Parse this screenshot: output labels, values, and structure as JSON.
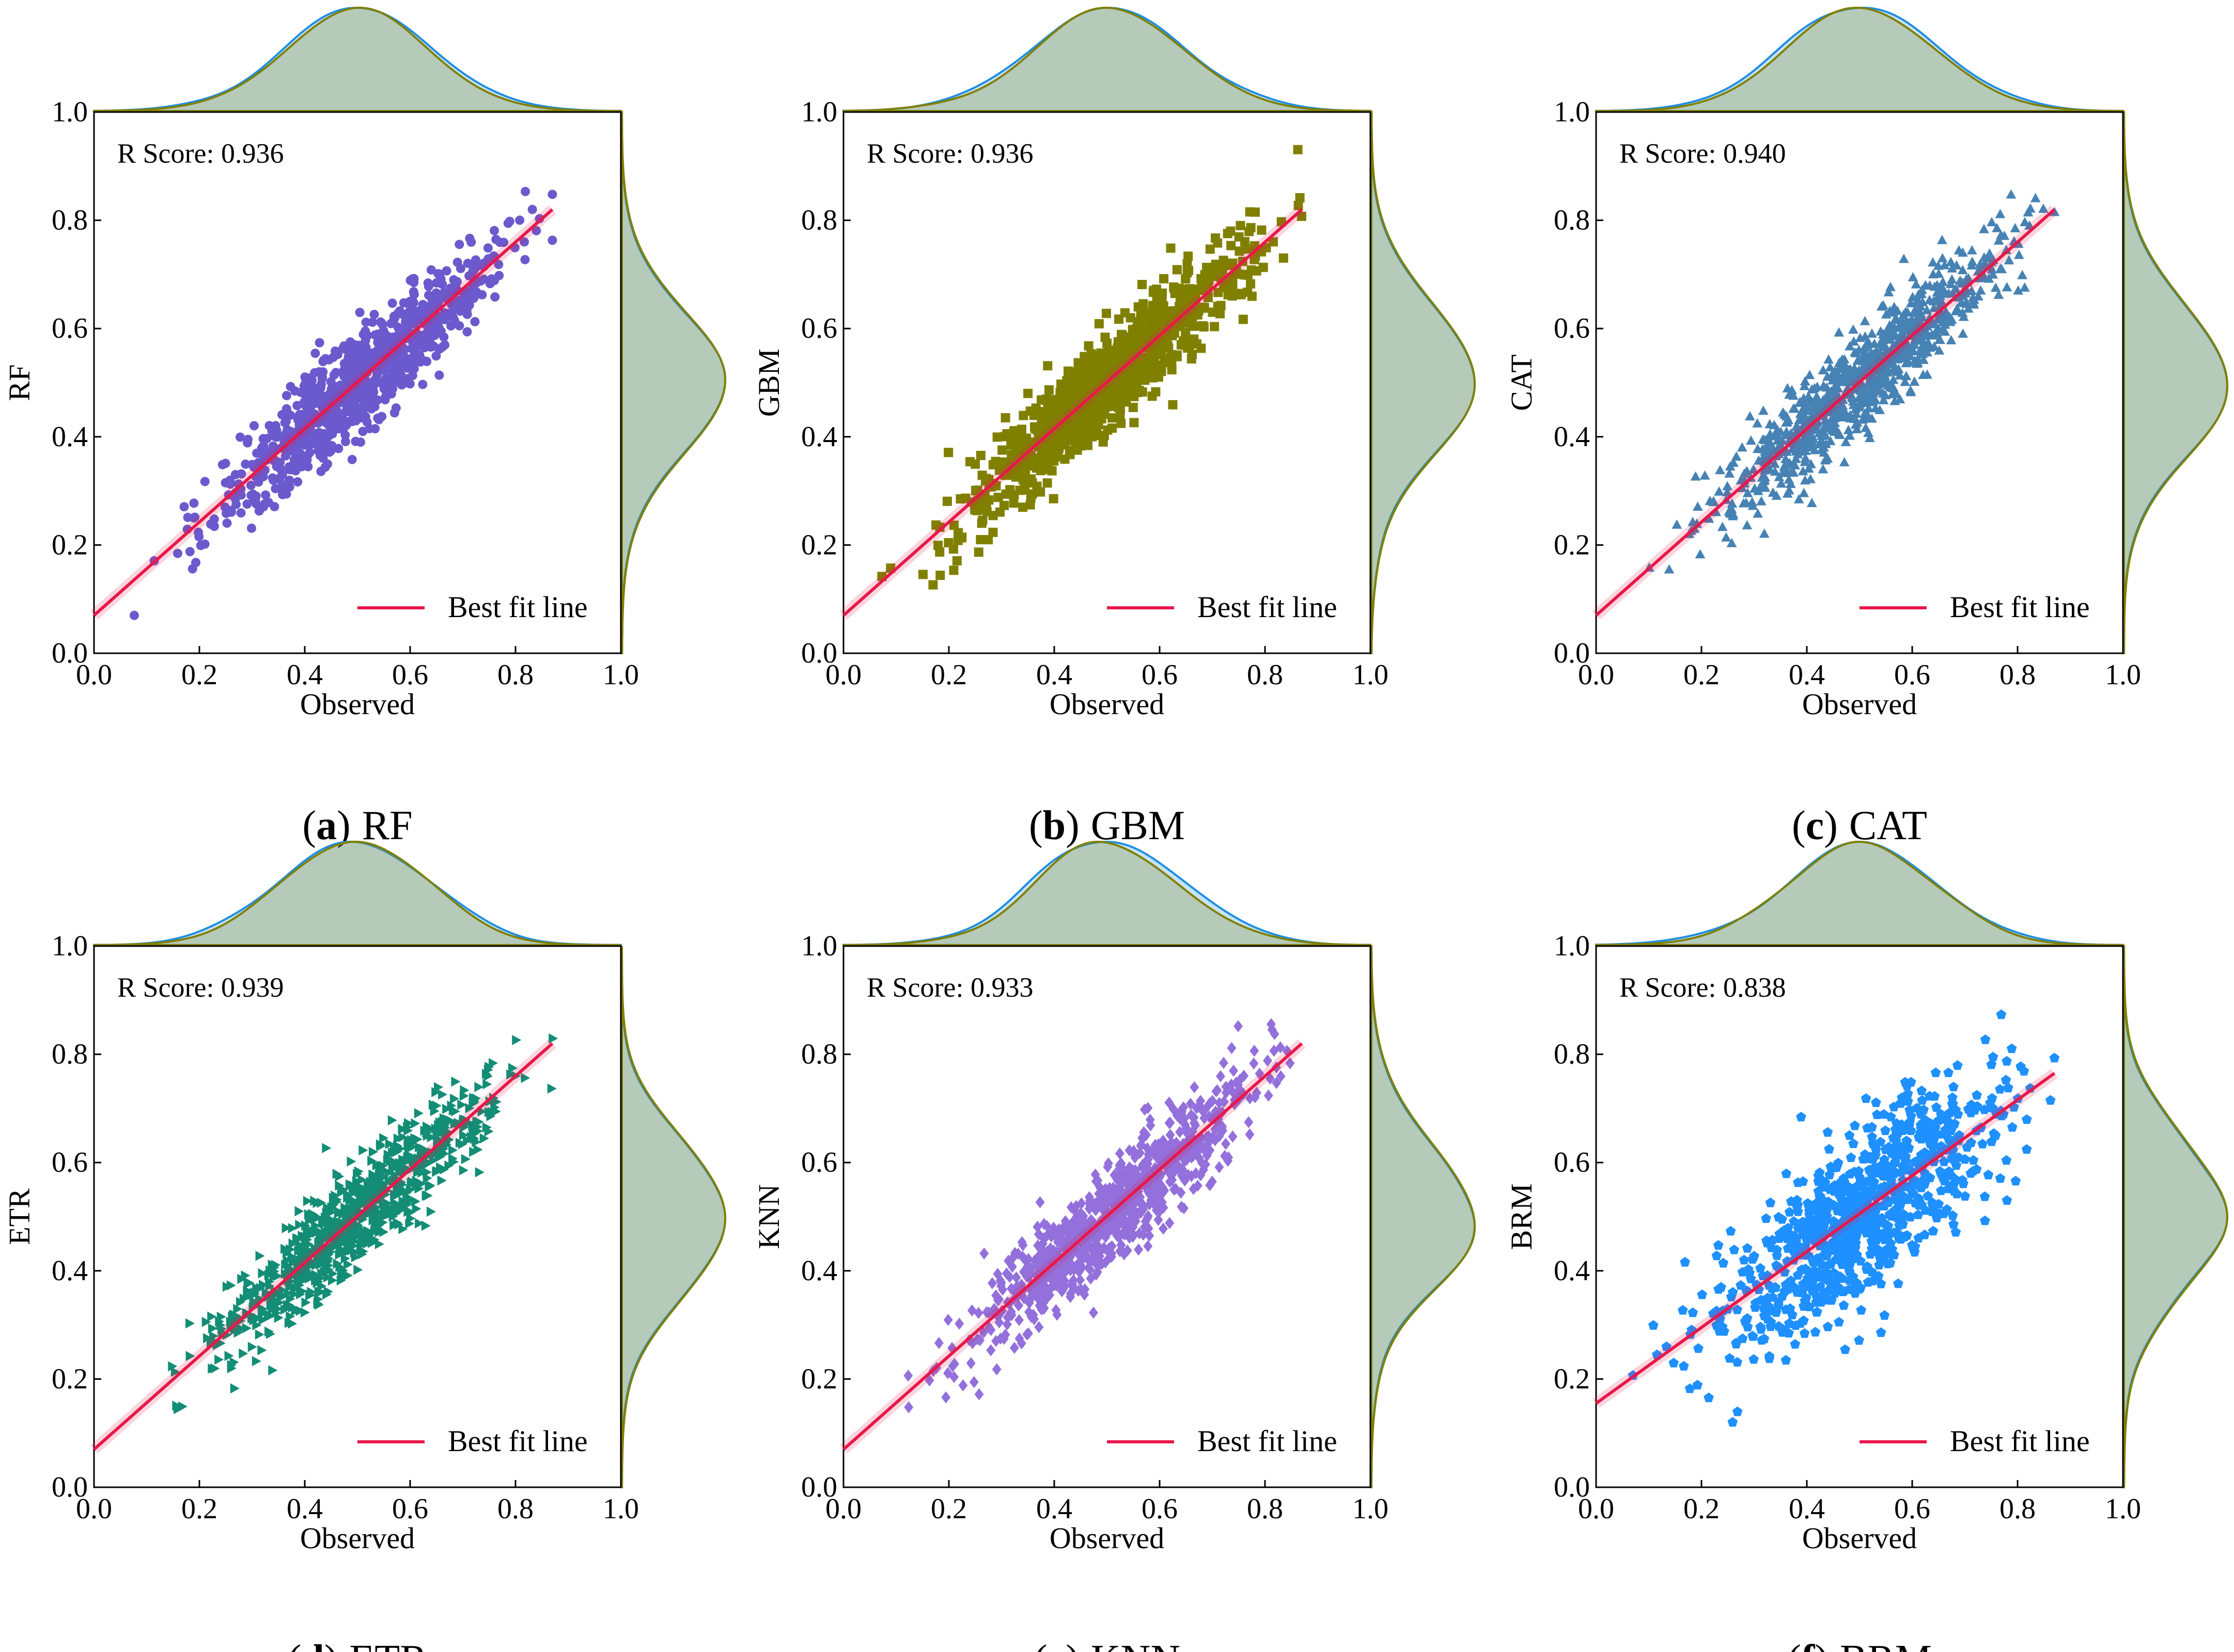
{
  "figure": {
    "xlabel": "Observed",
    "axis_ticks": [
      "0.0",
      "0.2",
      "0.4",
      "0.6",
      "0.8",
      "1.0"
    ],
    "legend_label": "Best fit line",
    "fit_line_color": "#e8184a",
    "marginal_colors": {
      "observed": "#1f8ee0",
      "predicted": "#808000"
    }
  },
  "chart_data": [
    {
      "type": "scatter",
      "model": "RF",
      "ylabel": "RF",
      "caption_letter": "a",
      "caption_text": "RF",
      "caption_paren_close": ")",
      "r_score_text": "R Score: 0.936",
      "r_score": 0.936,
      "marker": "circle",
      "color": "#6a5acd",
      "xlim": [
        0,
        1
      ],
      "ylim": [
        0,
        1
      ],
      "fit_line": {
        "x0": 0.0,
        "y0": 0.07,
        "x1": 0.87,
        "y1": 0.82
      },
      "point_cloud": {
        "x_mean": 0.5,
        "x_sd": 0.13,
        "slope": 0.86,
        "intercept": 0.07,
        "noise": 0.045,
        "n": 900
      },
      "legend_position": "lower-right"
    },
    {
      "type": "scatter",
      "model": "GBM",
      "ylabel": "GBM",
      "caption_letter": "b",
      "caption_text": "GBM",
      "caption_paren_close": ")",
      "r_score_text": "R Score: 0.936",
      "r_score": 0.936,
      "marker": "square",
      "color": "#808000",
      "xlim": [
        0,
        1
      ],
      "ylim": [
        0,
        1
      ],
      "fit_line": {
        "x0": 0.0,
        "y0": 0.07,
        "x1": 0.87,
        "y1": 0.82
      },
      "point_cloud": {
        "x_mean": 0.5,
        "x_sd": 0.13,
        "slope": 0.86,
        "intercept": 0.07,
        "noise": 0.045,
        "n": 900
      },
      "legend_position": "lower-right"
    },
    {
      "type": "scatter",
      "model": "CAT",
      "ylabel": "CAT",
      "caption_letter": "c",
      "caption_text": "CAT",
      "caption_paren_close": ")",
      "r_score_text": "R Score: 0.940",
      "r_score": 0.94,
      "marker": "triangle-up",
      "color": "#4682b4",
      "xlim": [
        0,
        1
      ],
      "ylim": [
        0,
        1
      ],
      "fit_line": {
        "x0": 0.0,
        "y0": 0.07,
        "x1": 0.87,
        "y1": 0.82
      },
      "point_cloud": {
        "x_mean": 0.5,
        "x_sd": 0.13,
        "slope": 0.86,
        "intercept": 0.07,
        "noise": 0.043,
        "n": 900
      },
      "legend_position": "lower-right"
    },
    {
      "type": "scatter",
      "model": "ETR",
      "ylabel": "ETR",
      "caption_letter": "d",
      "caption_text": "ETR",
      "caption_paren_close": ")",
      "r_score_text": "R Score: 0.939",
      "r_score": 0.939,
      "marker": "triangle-right",
      "color": "#138d75",
      "xlim": [
        0,
        1
      ],
      "ylim": [
        0,
        1
      ],
      "fit_line": {
        "x0": 0.0,
        "y0": 0.07,
        "x1": 0.87,
        "y1": 0.82
      },
      "point_cloud": {
        "x_mean": 0.5,
        "x_sd": 0.13,
        "slope": 0.86,
        "intercept": 0.07,
        "noise": 0.044,
        "n": 900
      },
      "legend_position": "lower-right"
    },
    {
      "type": "scatter",
      "model": "KNN",
      "ylabel": "KNN",
      "caption_letter": "e",
      "caption_text": "KNN",
      "caption_paren_close": ")",
      "r_score_text": "R Score: 0.933",
      "r_score": 0.933,
      "marker": "diamond",
      "color": "#9370db",
      "xlim": [
        0,
        1
      ],
      "ylim": [
        0,
        1
      ],
      "fit_line": {
        "x0": 0.0,
        "y0": 0.07,
        "x1": 0.87,
        "y1": 0.82
      },
      "point_cloud": {
        "x_mean": 0.5,
        "x_sd": 0.13,
        "slope": 0.86,
        "intercept": 0.07,
        "noise": 0.047,
        "n": 900
      },
      "legend_position": "lower-right"
    },
    {
      "type": "scatter",
      "model": "BRM",
      "ylabel": "BRM",
      "caption_letter": "f",
      "caption_text": "BRM",
      "caption_paren_close": ")",
      "r_score_text": "R Score: 0.838",
      "r_score": 0.838,
      "marker": "pentagon",
      "color": "#1e90ff",
      "xlim": [
        0,
        1
      ],
      "ylim": [
        0,
        1
      ],
      "fit_line": {
        "x0": 0.0,
        "y0": 0.155,
        "x1": 0.87,
        "y1": 0.765
      },
      "point_cloud": {
        "x_mean": 0.5,
        "x_sd": 0.13,
        "slope": 0.7,
        "intercept": 0.155,
        "noise": 0.075,
        "n": 900
      },
      "legend_position": "lower-right"
    }
  ]
}
